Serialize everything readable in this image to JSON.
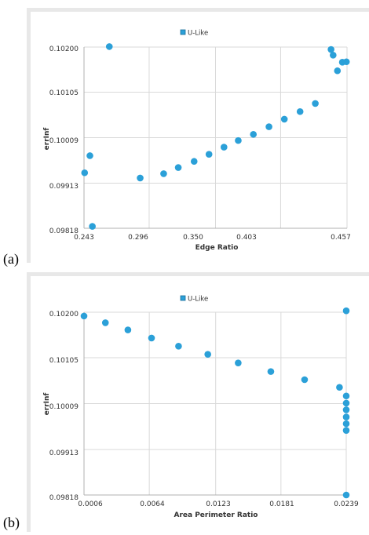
{
  "chart_data": [
    {
      "type": "scatter",
      "panel_label": "(a)",
      "legend": "U-Like",
      "legend_placement": "top-center",
      "xlabel": "Edge Ratio",
      "ylabel": "errInf",
      "xlim": [
        0.243,
        0.457
      ],
      "ylim": [
        0.09818,
        0.102
      ],
      "xticks": [
        "0.243",
        "0.296",
        "0.350",
        "0.403",
        "0.457"
      ],
      "yticks": [
        "0.09818",
        "0.09913",
        "0.10009",
        "0.10105",
        "0.10200"
      ],
      "grid": true,
      "color": "#2ba0d8",
      "series": [
        {
          "x": [
            0.2435,
            0.2478,
            0.2498,
            0.2636,
            0.2887,
            0.3078,
            0.3197,
            0.3326,
            0.3447,
            0.3569,
            0.3685,
            0.3808,
            0.3935,
            0.406,
            0.4188,
            0.4312,
            0.444,
            0.4457,
            0.4492,
            0.4532,
            0.4565
          ],
          "y": [
            0.09935,
            0.09971,
            0.09822,
            0.10201,
            0.09924,
            0.09933,
            0.09946,
            0.09959,
            0.09974,
            0.09989,
            0.10003,
            0.10016,
            0.10032,
            0.10048,
            0.10064,
            0.10081,
            0.10195,
            0.10183,
            0.1015,
            0.10168,
            0.10169
          ]
        }
      ]
    },
    {
      "type": "scatter",
      "panel_label": "(b)",
      "legend": "U-Like",
      "legend_placement": "top-center",
      "xlabel": "Area Perimeter Ratio",
      "ylabel": "errInf",
      "xlim": [
        0.0006,
        0.0239
      ],
      "ylim": [
        0.09818,
        0.102
      ],
      "xticks": [
        "0.0006",
        "0.0064",
        "0.0123",
        "0.0181",
        "0.0239"
      ],
      "yticks": [
        "0.09818",
        "0.09913",
        "0.10009",
        "0.10105",
        "0.10200"
      ],
      "grid": true,
      "color": "#2ba0d8",
      "series": [
        {
          "x": [
            0.0006,
            0.0025,
            0.0045,
            0.0066,
            0.009,
            0.0116,
            0.0143,
            0.0172,
            0.0202,
            0.0233,
            0.0239,
            0.0239,
            0.0239,
            0.0239,
            0.0239,
            0.0239,
            0.0239,
            0.0239
          ],
          "y": [
            0.10192,
            0.10178,
            0.10163,
            0.10146,
            0.10129,
            0.10112,
            0.10094,
            0.10076,
            0.10059,
            0.10043,
            0.10025,
            0.1001,
            0.09996,
            0.09981,
            0.09967,
            0.09953,
            0.10203,
            0.09818
          ]
        }
      ]
    }
  ]
}
